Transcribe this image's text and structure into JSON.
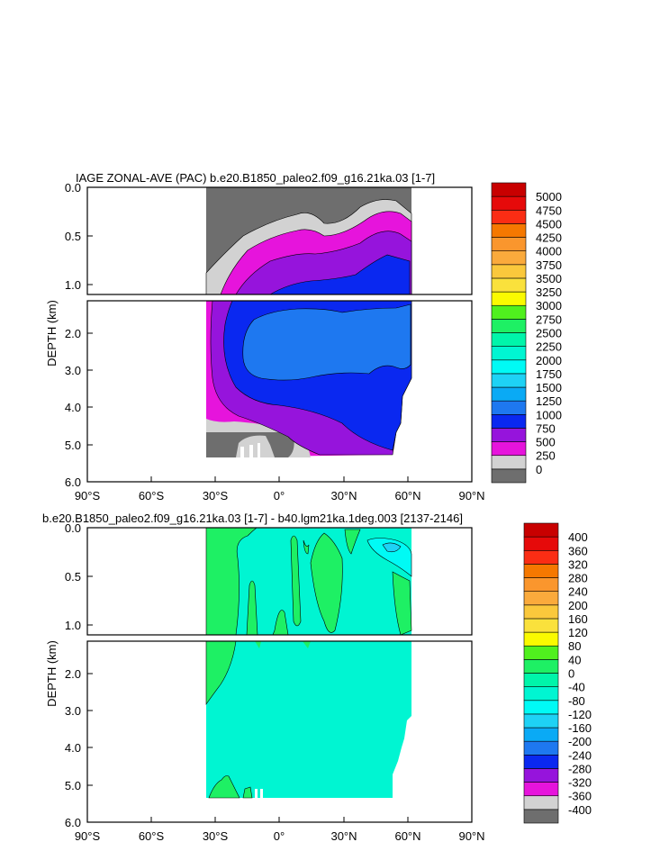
{
  "chart_data": [
    {
      "type": "heatmap",
      "title": "IAGE ZONAL-AVE (PAC) b.e20.B1850_paleo2.f09_g16.21ka.03 [1-7]",
      "ylabel": "DEPTH (km)",
      "xlabel": "",
      "xlim": [
        -90,
        90
      ],
      "x_ticks": [
        "90°S",
        "60°S",
        "30°S",
        "0°",
        "30°N",
        "60°N",
        "90°N"
      ],
      "y_ticks_upper": [
        "0.0",
        "0.5",
        "1.0"
      ],
      "y_ticks_lower": [
        "2.0",
        "3.0",
        "4.0",
        "5.0",
        "6.0"
      ],
      "colorbar": [
        "0",
        "250",
        "500",
        "750",
        "1000",
        "1250",
        "1500",
        "1750",
        "2000",
        "2250",
        "2500",
        "2750",
        "3000",
        "3250",
        "3500",
        "3750",
        "4000",
        "4250",
        "4500",
        "4750",
        "5000"
      ],
      "colors": [
        "#6e6e6e",
        "#d2d2d2",
        "#e614dc",
        "#9614dc",
        "#0a28f0",
        "#1e78f0",
        "#0aaaf5",
        "#1ed2f5",
        "#00faf5",
        "#00f5d2",
        "#00f5aa",
        "#1ef064",
        "#50f01e",
        "#fafa00",
        "#fae13c",
        "#fac83c",
        "#faaa3c",
        "#fa962d",
        "#f57800",
        "#fa2d14",
        "#e60a0a",
        "#c80000"
      ]
    },
    {
      "type": "heatmap",
      "title": "b.e20.B1850_paleo2.f09_g16.21ka.03 [1-7] - b40.lgm21ka.1deg.003 [2137-2146]",
      "ylabel": "DEPTH (km)",
      "xlabel": "",
      "xlim": [
        -90,
        90
      ],
      "x_ticks": [
        "90°S",
        "60°S",
        "30°S",
        "0°",
        "30°N",
        "60°N",
        "90°N"
      ],
      "y_ticks_upper": [
        "0.0",
        "0.5",
        "1.0"
      ],
      "y_ticks_lower": [
        "2.0",
        "3.0",
        "4.0",
        "5.0",
        "6.0"
      ],
      "colorbar": [
        "-400",
        "-360",
        "-320",
        "-280",
        "-240",
        "-200",
        "-160",
        "-120",
        "-80",
        "-40",
        "0",
        "40",
        "80",
        "120",
        "160",
        "200",
        "240",
        "280",
        "320",
        "360",
        "400"
      ],
      "colors": [
        "#6e6e6e",
        "#d2d2d2",
        "#e614dc",
        "#9614dc",
        "#0a28f0",
        "#1e78f0",
        "#0aaaf5",
        "#1ed2f5",
        "#00faf5",
        "#00f5d2",
        "#00f5aa",
        "#1ef064",
        "#50f01e",
        "#fafa00",
        "#fae13c",
        "#fac83c",
        "#faaa3c",
        "#fa962d",
        "#f57800",
        "#fa2d14",
        "#e60a0a",
        "#c80000"
      ]
    }
  ]
}
